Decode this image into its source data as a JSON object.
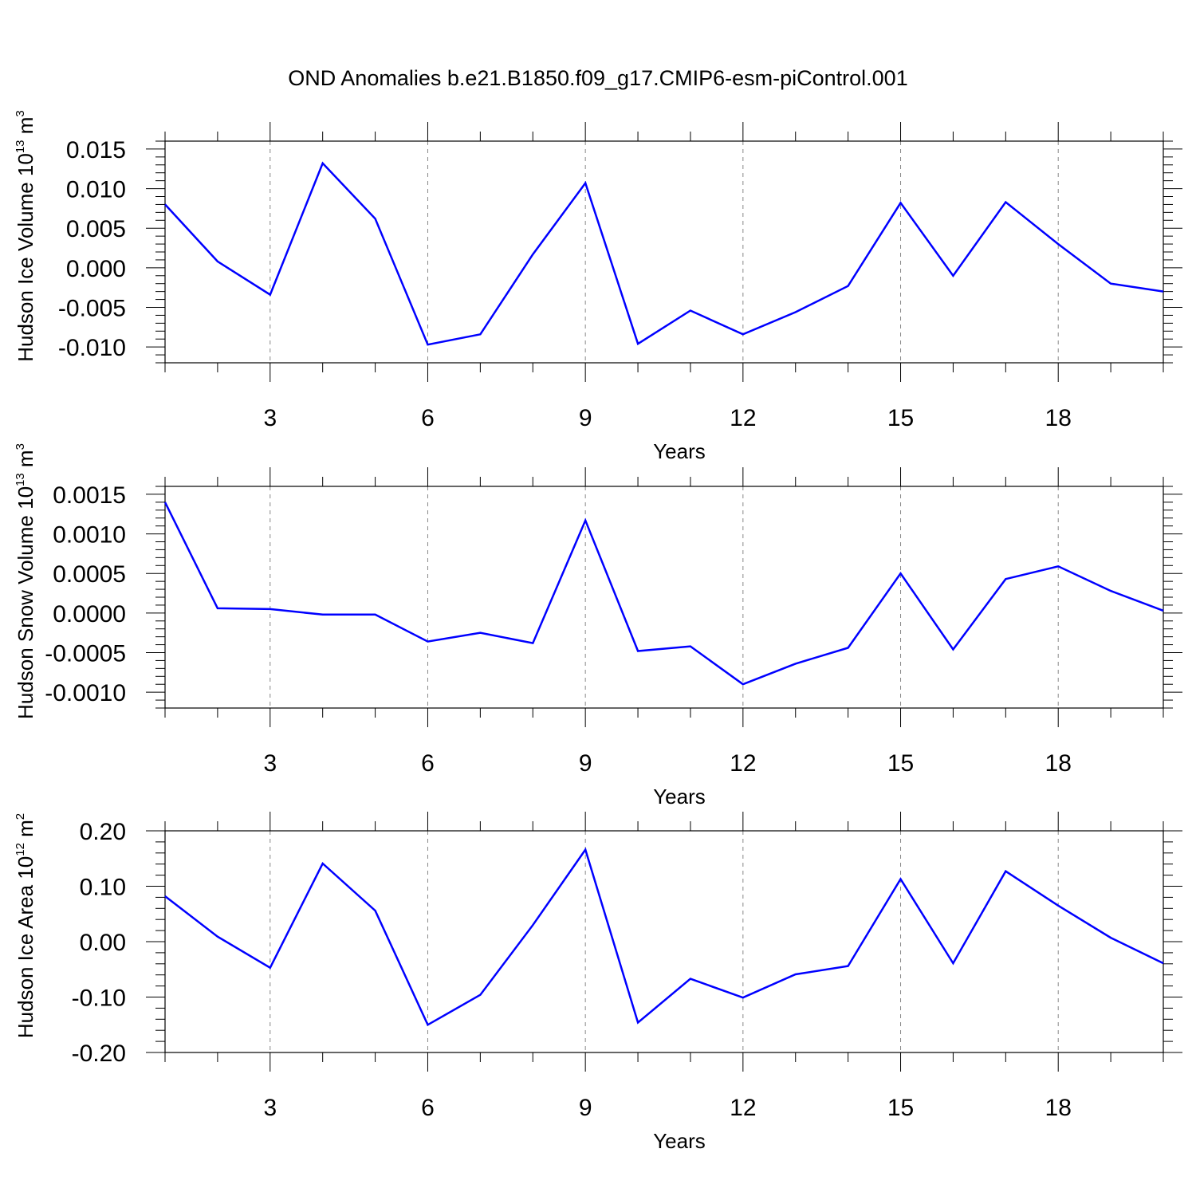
{
  "title": "OND Anomalies b.e21.B1850.f09_g17.CMIP6-esm-piControl.001",
  "line_color": "#0000ff",
  "chart_data": [
    {
      "type": "line",
      "ylabel": {
        "base": "Hudson Ice Volume 10",
        "exp1": "13",
        "unit": " m",
        "exp2": "3"
      },
      "xlabel": "Years",
      "xlim": [
        1,
        20
      ],
      "ylim": [
        -0.012,
        0.016
      ],
      "xticks": [
        3,
        6,
        9,
        12,
        15,
        18
      ],
      "yticks": [
        -0.01,
        -0.005,
        0.0,
        0.005,
        0.01,
        0.015
      ],
      "ytick_labels": [
        "-0.010",
        "-0.005",
        "0.000",
        "0.005",
        "0.010",
        "0.015"
      ],
      "grid": "vertical dashed at major x ticks",
      "x": [
        1,
        2,
        3,
        4,
        5,
        6,
        7,
        8,
        9,
        10,
        11,
        12,
        13,
        14,
        15,
        16,
        17,
        18,
        19,
        20
      ],
      "values": [
        0.008,
        0.0008,
        -0.0034,
        0.0132,
        0.0062,
        -0.0097,
        -0.0084,
        0.0017,
        0.0107,
        -0.0096,
        -0.0054,
        -0.0084,
        -0.0056,
        -0.0023,
        0.0082,
        -0.001,
        0.0083,
        0.003,
        -0.002,
        -0.003
      ]
    },
    {
      "type": "line",
      "ylabel": {
        "base": "Hudson Snow Volume 10",
        "exp1": "13",
        "unit": " m",
        "exp2": "3"
      },
      "xlabel": "Years",
      "xlim": [
        1,
        20
      ],
      "ylim": [
        -0.0012,
        0.0016
      ],
      "xticks": [
        3,
        6,
        9,
        12,
        15,
        18
      ],
      "yticks": [
        -0.001,
        -0.0005,
        0.0,
        0.0005,
        0.001,
        0.0015
      ],
      "ytick_labels": [
        "-0.0010",
        "-0.0005",
        "0.0000",
        "0.0005",
        "0.0010",
        "0.0015"
      ],
      "grid": "vertical dashed at major x ticks",
      "x": [
        1,
        2,
        3,
        4,
        5,
        6,
        7,
        8,
        9,
        10,
        11,
        12,
        13,
        14,
        15,
        16,
        17,
        18,
        19,
        20
      ],
      "values": [
        0.0014,
        6e-05,
        5e-05,
        -2e-05,
        -2e-05,
        -0.00036,
        -0.00025,
        -0.00038,
        0.00117,
        -0.00048,
        -0.00042,
        -0.0009,
        -0.00064,
        -0.00044,
        0.0005,
        -0.00046,
        0.00043,
        0.00059,
        0.00028,
        3e-05
      ]
    },
    {
      "type": "line",
      "ylabel": {
        "base": "Hudson Ice Area 10",
        "exp1": "12",
        "unit": " m",
        "exp2": "2"
      },
      "xlabel": "Years",
      "xlim": [
        1,
        20
      ],
      "ylim": [
        -0.2,
        0.2
      ],
      "xticks": [
        3,
        6,
        9,
        12,
        15,
        18
      ],
      "yticks": [
        -0.2,
        -0.1,
        0.0,
        0.1,
        0.2
      ],
      "ytick_labels": [
        "-0.20",
        "-0.10",
        "0.00",
        "0.10",
        "0.20"
      ],
      "grid": "vertical dashed at major x ticks",
      "x": [
        1,
        2,
        3,
        4,
        5,
        6,
        7,
        8,
        9,
        10,
        11,
        12,
        13,
        14,
        15,
        16,
        17,
        18,
        19,
        20
      ],
      "values": [
        0.082,
        0.009,
        -0.047,
        0.141,
        0.056,
        -0.15,
        -0.096,
        0.03,
        0.166,
        -0.146,
        -0.067,
        -0.101,
        -0.059,
        -0.044,
        0.113,
        -0.039,
        0.127,
        0.065,
        0.007,
        -0.039
      ]
    }
  ]
}
